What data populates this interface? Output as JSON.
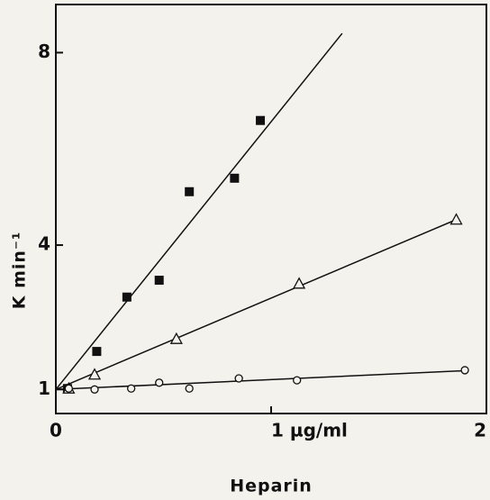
{
  "chart_data": {
    "type": "scatter",
    "x_label": "Heparin",
    "y_label": "K min⁻¹",
    "xlim": [
      0,
      2
    ],
    "xticks": [
      0,
      {
        "value": 1,
        "label": "1 µg/ml"
      },
      2
    ],
    "ylim": [
      0.5,
      9
    ],
    "yticks": [
      1,
      4,
      8
    ],
    "series": [
      {
        "marker": "square",
        "color": "#111111",
        "x": [
          0.054,
          0.19,
          0.33,
          0.48,
          0.62,
          0.83,
          0.95
        ],
        "values": [
          1.02,
          1.79,
          2.92,
          3.27,
          5.11,
          5.39,
          6.59
        ],
        "fit": {
          "x": [
            0,
            1.33
          ],
          "values": [
            1,
            8.4
          ]
        }
      },
      {
        "marker": "triangle",
        "color": "#111111",
        "x": [
          0.06,
          0.18,
          0.56,
          1.13,
          1.86
        ],
        "values": [
          1.02,
          1.31,
          2.05,
          3.2,
          4.53
        ],
        "fit": {
          "x": [
            0,
            1.86
          ],
          "values": [
            1,
            4.53
          ]
        }
      },
      {
        "marker": "circle",
        "color": "#111111",
        "x": [
          0.06,
          0.18,
          0.35,
          0.48,
          0.62,
          0.85,
          1.12,
          1.9
        ],
        "values": [
          1.02,
          1.0,
          1.02,
          1.14,
          1.02,
          1.23,
          1.19,
          1.4
        ],
        "fit": {
          "x": [
            0,
            1.9
          ],
          "values": [
            1,
            1.39
          ]
        }
      }
    ]
  }
}
